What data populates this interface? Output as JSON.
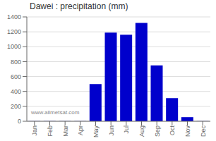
{
  "chart_data": {
    "type": "bar",
    "title": "Dawei : precipitation (mm)",
    "categories": [
      "Jan",
      "Feb",
      "Mar",
      "Apr",
      "May",
      "Jun",
      "Jul",
      "Aug",
      "Sep",
      "Oct",
      "Nov",
      "Dec"
    ],
    "values": [
      2,
      2,
      2,
      2,
      500,
      1190,
      1160,
      1320,
      750,
      310,
      55,
      2
    ],
    "color": "#0000cc",
    "ylim": [
      0,
      1400
    ],
    "yticks": [
      0,
      200,
      400,
      600,
      800,
      1000,
      1200,
      1400
    ],
    "grid": true,
    "annotations": [
      "www.allmetsat.com"
    ]
  }
}
